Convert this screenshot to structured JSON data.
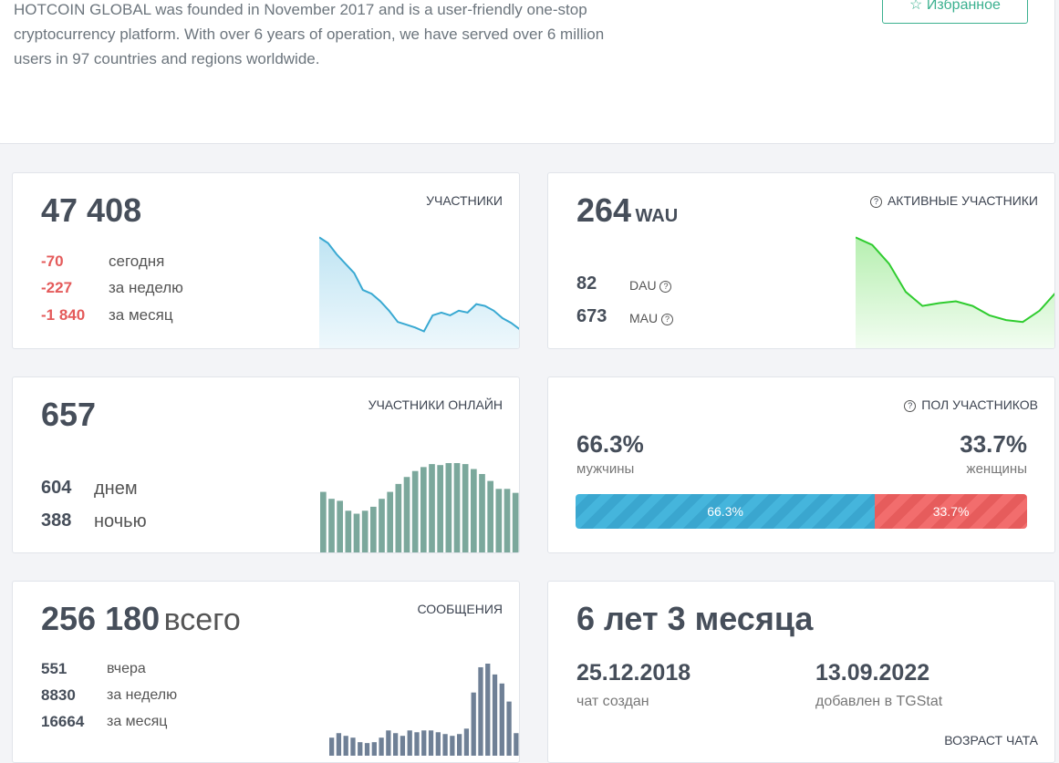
{
  "about": {
    "lines": [
      "HOTCOIN GLOBAL was founded in November 2017 and is a user-friendly one-stop",
      "cryptocurrency platform. With over 6 years of operation, we have served over 6 million",
      "users in 97 countries and regions worldwide."
    ],
    "button": "Избранное"
  },
  "members": {
    "title": "УЧАСТНИКИ",
    "total": "47 408",
    "stats": [
      {
        "value": "-70",
        "label": "сегодня"
      },
      {
        "value": "-227",
        "label": "за неделю"
      },
      {
        "value": "-1 840",
        "label": "за месяц"
      }
    ],
    "spark": [
      118,
      112,
      100,
      90,
      80,
      62,
      58,
      50,
      40,
      28,
      25,
      22,
      18,
      35,
      38,
      35,
      40,
      38,
      47,
      45,
      40,
      32,
      27,
      20
    ]
  },
  "active": {
    "title": "АКТИВНЫЕ УЧАСТНИКИ",
    "total": "264",
    "unit": "WAU",
    "stats": [
      {
        "value": "82",
        "label": "DAU"
      },
      {
        "value": "673",
        "label": "MAU"
      }
    ],
    "spark": [
      118,
      110,
      90,
      60,
      45,
      48,
      50,
      45,
      35,
      30,
      28,
      40,
      60
    ]
  },
  "online": {
    "title": "УЧАСТНИКИ ОНЛАЙН",
    "total": "657",
    "stats": [
      {
        "value": "604",
        "label": "днем"
      },
      {
        "value": "388",
        "label": "ночью"
      }
    ],
    "bars": [
      61,
      54,
      52,
      42,
      39,
      42,
      46,
      54,
      61,
      69,
      76,
      82,
      86,
      89,
      88,
      90,
      90,
      89,
      84,
      79,
      72,
      64,
      64,
      60
    ]
  },
  "gender": {
    "title": "ПОЛ УЧАСТНИКОВ",
    "male": {
      "value": 66.3,
      "label": "66.3%",
      "name": "мужчины"
    },
    "female": {
      "value": 33.7,
      "label": "33.7%",
      "name": "женщины"
    }
  },
  "messages": {
    "title": "СООБЩЕНИЯ",
    "total": "256 180",
    "unit": "всего",
    "stats": [
      {
        "value": "551",
        "label": "вчера"
      },
      {
        "value": "8830",
        "label": "за неделю"
      },
      {
        "value": "16664",
        "label": "за месяц"
      }
    ],
    "bars": [
      20,
      25,
      22,
      20,
      15,
      14,
      15,
      20,
      28,
      25,
      22,
      28,
      26,
      28,
      28,
      26,
      24,
      22,
      24,
      30,
      70,
      98,
      102,
      90,
      80,
      60,
      25
    ]
  },
  "age": {
    "title": "ВОЗРАСТ ЧАТА",
    "total": "6 лет 3 месяца",
    "created": {
      "date": "25.12.2018",
      "label": "чат создан"
    },
    "added": {
      "date": "13.09.2022",
      "label": "добавлен в TGStat"
    }
  }
}
